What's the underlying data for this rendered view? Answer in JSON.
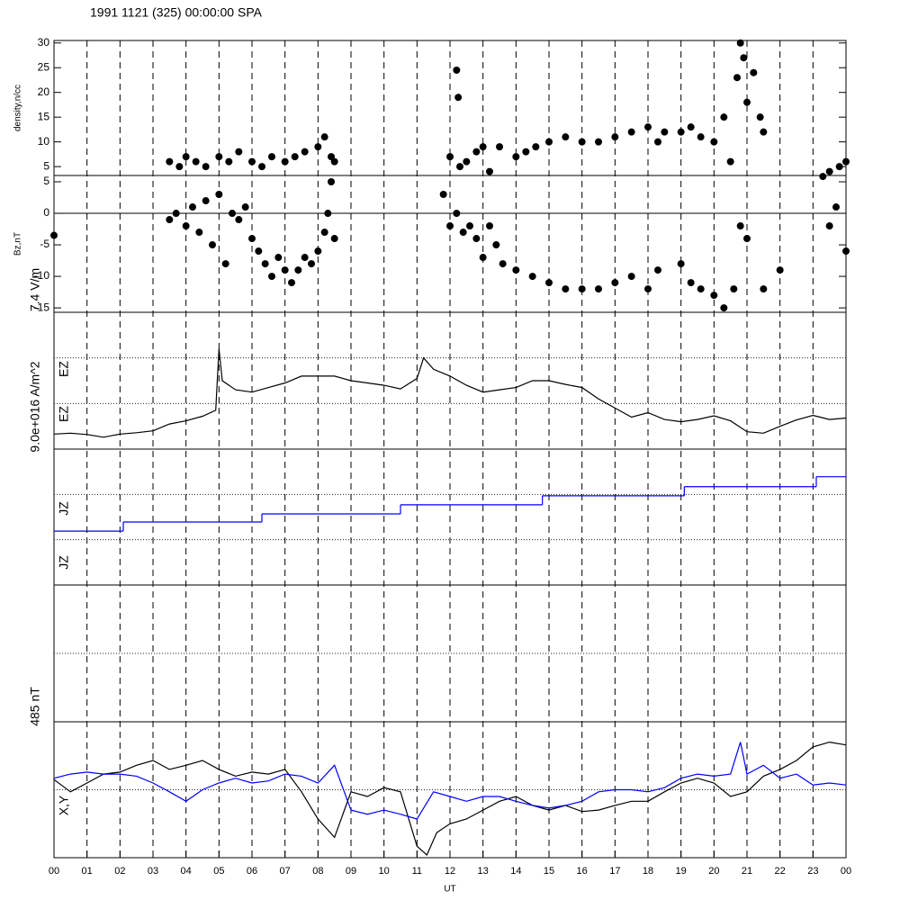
{
  "chart_data": [
    {
      "type": "scatter",
      "title": "1991 1121 (325) 00:00:00 SPA",
      "ylabel": "density,n/cc",
      "ylim": [
        3.2,
        30.5
      ],
      "yticks": [
        5,
        10,
        15,
        20,
        25,
        30
      ],
      "series": [
        {
          "color": "#000000",
          "x": [
            3.5,
            3.8,
            4,
            4.3,
            4.6,
            5,
            5.3,
            5.6,
            6,
            6.3,
            6.6,
            7,
            7.3,
            7.6,
            8,
            8.2,
            8.4,
            8.5,
            12.0,
            12.2,
            12.25,
            12.3,
            12.5,
            12.8,
            13,
            13.2,
            13.5,
            14,
            14.3,
            14.6,
            15,
            15.5,
            16,
            16.5,
            17,
            17.5,
            18,
            18.3,
            18.5,
            19,
            19.3,
            19.6,
            20,
            20.3,
            20.5,
            20.7,
            20.8,
            20.9,
            21,
            21.2,
            21.4,
            21.5,
            23.3,
            23.5,
            23.8,
            24
          ],
          "values": [
            6,
            5,
            7,
            6,
            5,
            7,
            6,
            8,
            6,
            5,
            7,
            6,
            7,
            8,
            9,
            11,
            7,
            6,
            7,
            24.5,
            19,
            5,
            6,
            8,
            9,
            4,
            9,
            7,
            8,
            9,
            10,
            11,
            10,
            10,
            11,
            12,
            13,
            10,
            12,
            12,
            13,
            11,
            10,
            15,
            6,
            23,
            30,
            27,
            18,
            24,
            15,
            12,
            3,
            4,
            5,
            6
          ]
        }
      ]
    },
    {
      "type": "scatter",
      "ylabel": "Bz,nT",
      "ylim": [
        -15.7,
        6
      ],
      "yticks": [
        -15,
        -10,
        -5,
        0,
        5
      ],
      "hline": 0,
      "series": [
        {
          "color": "#000000",
          "x": [
            0,
            3.5,
            3.7,
            4,
            4.2,
            4.4,
            4.6,
            4.8,
            5,
            5.2,
            5.4,
            5.6,
            5.8,
            6,
            6.2,
            6.4,
            6.6,
            6.8,
            7,
            7.2,
            7.4,
            7.6,
            7.8,
            8,
            8.2,
            8.3,
            8.4,
            8.5,
            11.8,
            12,
            12.2,
            12.4,
            12.6,
            12.8,
            13,
            13.2,
            13.4,
            13.6,
            14,
            14.5,
            15,
            15.5,
            16,
            16.5,
            17,
            17.5,
            18,
            18.3,
            19,
            19.3,
            19.6,
            20,
            20.3,
            20.6,
            20.8,
            21,
            21.5,
            22,
            23.5,
            23.7,
            24
          ],
          "values": [
            -3.5,
            -1,
            0,
            -2,
            1,
            -3,
            2,
            -5,
            3,
            -8,
            0,
            -1,
            1,
            -4,
            -6,
            -8,
            -10,
            -7,
            -9,
            -11,
            -9,
            -7,
            -8,
            -6,
            -3,
            0,
            5,
            -4,
            3,
            -2,
            0,
            -3,
            -2,
            -4,
            -7,
            -2,
            -5,
            -8,
            -9,
            -10,
            -11,
            -12,
            -12,
            -12,
            -11,
            -10,
            -12,
            -9,
            -8,
            -11,
            -12,
            -13,
            -15,
            -12,
            -2,
            -4,
            -12,
            -9,
            -2,
            1,
            -6
          ]
        }
      ]
    },
    {
      "type": "line",
      "scale_label": "7.4 V/m",
      "labels": [
        "EZ",
        "EZ"
      ],
      "ylim": [
        0,
        3
      ],
      "reflines": [
        1,
        2
      ],
      "series": [
        {
          "color": "#000000",
          "x": [
            0,
            0.5,
            1,
            1.5,
            2,
            2.5,
            3,
            3.5,
            4,
            4.5,
            4.9,
            5.0,
            5.1,
            5.5,
            6,
            6.5,
            7,
            7.5,
            8,
            8.5,
            9,
            9.5,
            10,
            10.5,
            11,
            11.2,
            11.5,
            12,
            12.5,
            13,
            13.5,
            14,
            14.5,
            15,
            15.5,
            16,
            16.5,
            17,
            17.5,
            18,
            18.5,
            19,
            19.5,
            20,
            20.5,
            21,
            21.5,
            22,
            22.5,
            23,
            23.5,
            24
          ],
          "values": [
            0.33,
            0.35,
            0.32,
            0.26,
            0.33,
            0.36,
            0.4,
            0.55,
            0.62,
            0.72,
            0.85,
            2.2,
            1.5,
            1.3,
            1.25,
            1.35,
            1.45,
            1.6,
            1.6,
            1.6,
            1.5,
            1.45,
            1.4,
            1.32,
            1.55,
            2.0,
            1.75,
            1.6,
            1.4,
            1.25,
            1.3,
            1.35,
            1.5,
            1.5,
            1.42,
            1.35,
            1.1,
            0.9,
            0.7,
            0.8,
            0.65,
            0.6,
            0.65,
            0.73,
            0.62,
            0.38,
            0.35,
            0.5,
            0.64,
            0.74,
            0.65,
            0.68
          ]
        }
      ]
    },
    {
      "type": "step",
      "scale_label": "9.0e+016 A/m^2",
      "labels": [
        "JZ",
        "JZ"
      ],
      "ylim": [
        0,
        3
      ],
      "reflines": [
        1,
        2
      ],
      "series": [
        {
          "color": "#0000ff",
          "x": [
            0,
            2.1,
            6.3,
            10.5,
            14.8,
            19.1,
            23.1
          ],
          "values": [
            1.19,
            1.39,
            1.57,
            1.77,
            1.97,
            2.17,
            2.39
          ]
        }
      ]
    },
    {
      "type": "blank",
      "scale_label": "485 nT",
      "ylim": [
        0,
        2
      ],
      "reflines": [
        1
      ]
    },
    {
      "type": "line",
      "labels": [
        "X,Y"
      ],
      "ylim": [
        -1,
        1
      ],
      "reflines": [
        0
      ],
      "xlim": [
        0,
        24
      ],
      "xlabel": "UT",
      "xticks": [
        {
          "value": 0,
          "label": "00"
        },
        {
          "value": 1,
          "label": "01"
        },
        {
          "value": 2,
          "label": "02"
        },
        {
          "value": 3,
          "label": "03"
        },
        {
          "value": 4,
          "label": "04"
        },
        {
          "value": 5,
          "label": "05"
        },
        {
          "value": 6,
          "label": "06"
        },
        {
          "value": 7,
          "label": "07"
        },
        {
          "value": 8,
          "label": "08"
        },
        {
          "value": 9,
          "label": "09"
        },
        10,
        11,
        12,
        13,
        14,
        15,
        16,
        17,
        18,
        19,
        20,
        21,
        22,
        23,
        {
          "value": 24,
          "label": "00"
        }
      ],
      "series": [
        {
          "color": "#000000",
          "x": [
            0,
            0.5,
            1,
            1.5,
            2,
            2.5,
            3,
            3.5,
            4,
            4.5,
            5,
            5.5,
            6,
            6.5,
            7,
            7.5,
            8,
            8.5,
            9,
            9.5,
            10,
            10.5,
            11,
            11.3,
            11.6,
            12,
            12.5,
            13,
            13.5,
            14,
            14.5,
            15,
            15.5,
            16,
            16.5,
            17,
            17.5,
            18,
            18.5,
            19,
            19.5,
            20,
            20.5,
            21,
            21.5,
            22,
            22.5,
            23,
            23.5,
            24
          ],
          "values": [
            0.15,
            -0.03,
            0.1,
            0.23,
            0.26,
            0.36,
            0.43,
            0.3,
            0.36,
            0.43,
            0.3,
            0.2,
            0.26,
            0.23,
            0.3,
            -0.03,
            -0.43,
            -0.7,
            -0.03,
            -0.1,
            0.03,
            -0.03,
            -0.83,
            -0.96,
            -0.63,
            -0.5,
            -0.43,
            -0.3,
            -0.17,
            -0.1,
            -0.23,
            -0.3,
            -0.23,
            -0.32,
            -0.3,
            -0.23,
            -0.17,
            -0.17,
            -0.03,
            0.1,
            0.17,
            0.1,
            -0.1,
            -0.03,
            0.2,
            0.3,
            0.43,
            0.63,
            0.7,
            0.66
          ]
        },
        {
          "color": "#0000ff",
          "x": [
            0,
            0.5,
            1,
            1.5,
            2,
            2.5,
            3,
            3.5,
            4,
            4.5,
            5,
            5.5,
            6,
            6.5,
            7,
            7.5,
            8,
            8.5,
            9,
            9.5,
            10,
            10.5,
            11,
            11.5,
            12,
            12.5,
            13,
            13.5,
            14,
            14.5,
            15,
            15.5,
            16,
            16.5,
            17,
            17.5,
            18,
            18.5,
            19,
            19.5,
            20,
            20.5,
            20.8,
            21,
            21.5,
            22,
            22.5,
            23,
            23.5,
            24
          ],
          "values": [
            0.17,
            0.23,
            0.26,
            0.23,
            0.23,
            0.2,
            0.1,
            -0.03,
            -0.17,
            0,
            0.1,
            0.17,
            0.1,
            0.13,
            0.23,
            0.2,
            0.1,
            0.36,
            -0.3,
            -0.36,
            -0.3,
            -0.36,
            -0.43,
            -0.03,
            -0.1,
            -0.17,
            -0.1,
            -0.1,
            -0.17,
            -0.23,
            -0.27,
            -0.23,
            -0.17,
            -0.03,
            0,
            0,
            -0.03,
            0.03,
            0.17,
            0.23,
            0.2,
            0.23,
            0.7,
            0.23,
            0.36,
            0.17,
            0.23,
            0.07,
            0.1,
            0.07
          ]
        }
      ]
    }
  ]
}
